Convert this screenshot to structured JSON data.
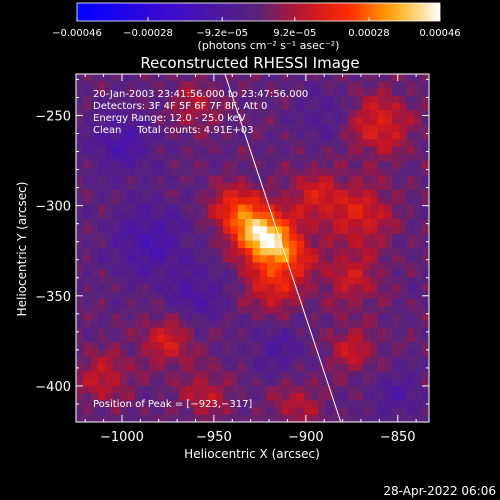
{
  "chart_data": {
    "type": "heatmap",
    "title": "Reconstructed RHESSI Image",
    "xlabel": "Heliocentric X (arcsec)",
    "ylabel": "Heliocentric Y (arcsec)",
    "xlim": [
      -1025,
      -833
    ],
    "ylim": [
      -420,
      -227
    ],
    "x_ticks": [
      -1000,
      -950,
      -900,
      -850
    ],
    "y_ticks": [
      -250,
      -300,
      -350,
      -400
    ],
    "x_tick_labels": [
      "−1000",
      "−950",
      "−900",
      "−850"
    ],
    "y_tick_labels": [
      "−250",
      "−300",
      "−350",
      "−400"
    ],
    "colorbar": {
      "range": [
        -0.00046,
        0.00046
      ],
      "ticks": [
        -0.00046,
        -0.00028,
        -9.2e-05,
        9.2e-05,
        0.00028,
        0.00046
      ],
      "tick_labels": [
        "−0.00046",
        "−0.00028",
        "−9.2e−05",
        "9.2e−05",
        "0.00028",
        "0.00046"
      ],
      "unit_label": "(photons cm⁻² s⁻¹ asec⁻²)"
    },
    "info_lines": [
      "20-Jan-2003 23:41:56.000 to 23:47:56.000",
      "Detectors: 3F 4F 5F 6F 7F 8F, Att 0",
      "Energy Range: 12.0 - 25.0 keV",
      "Clean     Total counts: 4.91E+03"
    ],
    "peak": {
      "label": "Position of Peak = [−923,−317]",
      "x": -923,
      "y": -317
    },
    "limb_line": {
      "from": [
        -944,
        -227
      ],
      "to": [
        -881,
        -420
      ]
    },
    "features": [
      {
        "x": -923,
        "y": -317,
        "sigma": 10,
        "amp": 0.00044
      },
      {
        "x": -938,
        "y": -302,
        "sigma": 9,
        "amp": 0.00022
      },
      {
        "x": -908,
        "y": -328,
        "sigma": 9,
        "amp": 0.00018
      },
      {
        "x": -918,
        "y": -345,
        "sigma": 10,
        "amp": 0.00016
      },
      {
        "x": -895,
        "y": -295,
        "sigma": 10,
        "amp": 0.00014
      },
      {
        "x": -870,
        "y": -305,
        "sigma": 12,
        "amp": 0.00015
      },
      {
        "x": -860,
        "y": -255,
        "sigma": 12,
        "amp": 0.00016
      },
      {
        "x": -875,
        "y": -340,
        "sigma": 11,
        "amp": 0.00012
      },
      {
        "x": -960,
        "y": -245,
        "sigma": 9,
        "amp": 0.0001
      },
      {
        "x": -975,
        "y": -375,
        "sigma": 10,
        "amp": 0.00014
      },
      {
        "x": -1010,
        "y": -395,
        "sigma": 10,
        "amp": 0.00012
      },
      {
        "x": -955,
        "y": -405,
        "sigma": 9,
        "amp": 0.00011
      },
      {
        "x": -905,
        "y": -410,
        "sigma": 9,
        "amp": 0.0001
      },
      {
        "x": -875,
        "y": -380,
        "sigma": 9,
        "amp": 0.00012
      },
      {
        "x": -1000,
        "y": -265,
        "sigma": 12,
        "amp": -0.00012
      },
      {
        "x": -985,
        "y": -320,
        "sigma": 14,
        "amp": -0.00013
      },
      {
        "x": -960,
        "y": -350,
        "sigma": 11,
        "amp": -0.0001
      },
      {
        "x": -915,
        "y": -380,
        "sigma": 10,
        "amp": -8e-05
      },
      {
        "x": -890,
        "y": -250,
        "sigma": 10,
        "amp": -7e-05
      },
      {
        "x": -850,
        "y": -405,
        "sigma": 10,
        "amp": -8e-05
      }
    ]
  },
  "colors": {
    "background": "#000000",
    "text": "#ffffff",
    "limb_line": "#ffffff"
  },
  "footer": {
    "generated_date": "28-Apr-2022 06:06"
  }
}
